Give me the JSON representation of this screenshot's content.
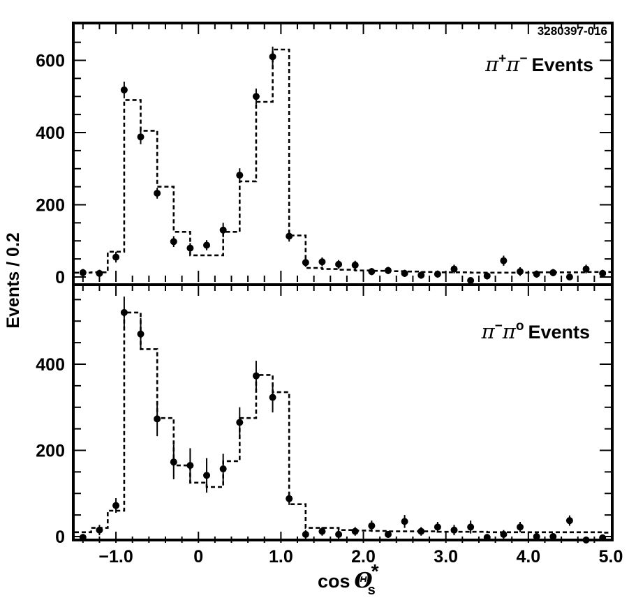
{
  "figure_id": "3280397-016",
  "ylabel": "Events / 0.2",
  "xlabel": {
    "prefix": "cos",
    "symbol": "Θ",
    "subscript": "s",
    "superscript": "*"
  },
  "chart_data": [
    {
      "type": "histogram",
      "panel": "top",
      "label": {
        "particle1": "π",
        "charge1": "+",
        "particle2": "π",
        "charge2": "−",
        "suffix": "Events"
      },
      "xlim": [
        -1.5,
        5.0
      ],
      "ylim": [
        0,
        700
      ],
      "yticks": [
        0,
        200,
        400,
        600
      ],
      "ytick_labels": [
        "0",
        "200",
        "400",
        "600"
      ],
      "xticks": [
        -1.0,
        0,
        1.0,
        2.0,
        3.0,
        4.0,
        5.0
      ],
      "xtick_labels": [
        "−1.0",
        "0",
        "1.0",
        "2.0",
        "3.0",
        "4.0",
        "5.0"
      ],
      "bin_width": 0.2,
      "bin_start": -1.5,
      "histogram": [
        12,
        13,
        70,
        490,
        405,
        250,
        125,
        60,
        60,
        125,
        265,
        485,
        630,
        115,
        25,
        22,
        20,
        18,
        17,
        16,
        15,
        14,
        13,
        13,
        12,
        12,
        12,
        12,
        13,
        13,
        13,
        14,
        14
      ],
      "points": [
        {
          "x": -1.4,
          "y": 12,
          "err": 10
        },
        {
          "x": -1.2,
          "y": 10,
          "err": 10
        },
        {
          "x": -1.0,
          "y": 55,
          "err": 15
        },
        {
          "x": -0.9,
          "y": 518,
          "err": 23
        },
        {
          "x": -0.7,
          "y": 388,
          "err": 20
        },
        {
          "x": -0.5,
          "y": 232,
          "err": 15
        },
        {
          "x": -0.3,
          "y": 98,
          "err": 15
        },
        {
          "x": -0.1,
          "y": 80,
          "err": 14
        },
        {
          "x": 0.1,
          "y": 88,
          "err": 14
        },
        {
          "x": 0.3,
          "y": 130,
          "err": 20
        },
        {
          "x": 0.5,
          "y": 282,
          "err": 19
        },
        {
          "x": 0.7,
          "y": 500,
          "err": 22
        },
        {
          "x": 0.9,
          "y": 610,
          "err": 28
        },
        {
          "x": 1.1,
          "y": 113,
          "err": 15
        },
        {
          "x": 1.3,
          "y": 40,
          "err": 12
        },
        {
          "x": 1.5,
          "y": 42,
          "err": 12
        },
        {
          "x": 1.7,
          "y": 35,
          "err": 12
        },
        {
          "x": 1.9,
          "y": 33,
          "err": 12
        },
        {
          "x": 2.1,
          "y": 15,
          "err": 10
        },
        {
          "x": 2.3,
          "y": 18,
          "err": 10
        },
        {
          "x": 2.5,
          "y": 10,
          "err": 10
        },
        {
          "x": 2.7,
          "y": 5,
          "err": 10
        },
        {
          "x": 2.9,
          "y": 8,
          "err": 10
        },
        {
          "x": 3.1,
          "y": 22,
          "err": 12
        },
        {
          "x": 3.3,
          "y": -20,
          "err": 8
        },
        {
          "x": 3.5,
          "y": 3,
          "err": 10
        },
        {
          "x": 3.7,
          "y": 45,
          "err": 14
        },
        {
          "x": 3.9,
          "y": 15,
          "err": 12
        },
        {
          "x": 4.1,
          "y": 8,
          "err": 10
        },
        {
          "x": 4.3,
          "y": 12,
          "err": 10
        },
        {
          "x": 4.5,
          "y": 0,
          "err": 8
        },
        {
          "x": 4.7,
          "y": 22,
          "err": 12
        },
        {
          "x": 4.9,
          "y": 10,
          "err": 10
        }
      ]
    },
    {
      "type": "histogram",
      "panel": "bottom",
      "label": {
        "particle1": "π",
        "charge1": "−",
        "particle2": "π",
        "charge2": "o",
        "suffix": "Events"
      },
      "xlim": [
        -1.5,
        5.0
      ],
      "ylim": [
        0,
        600
      ],
      "yticks": [
        0,
        200,
        400
      ],
      "ytick_labels": [
        "0",
        "200",
        "400"
      ],
      "xticks": [
        -1.0,
        0,
        1.0,
        2.0,
        3.0,
        4.0,
        5.0
      ],
      "xtick_labels": [
        "−1.0",
        "0",
        "1.0",
        "2.0",
        "3.0",
        "4.0",
        "5.0"
      ],
      "bin_width": 0.2,
      "bin_start": -1.5,
      "histogram": [
        10,
        20,
        60,
        520,
        435,
        275,
        165,
        125,
        115,
        175,
        275,
        375,
        335,
        75,
        20,
        20,
        15,
        14,
        13,
        12,
        12,
        12,
        11,
        11,
        11,
        10,
        10,
        10,
        10,
        10,
        10,
        10,
        9
      ],
      "points": [
        {
          "x": -1.4,
          "y": -2,
          "err": 8
        },
        {
          "x": -1.2,
          "y": 15,
          "err": 12
        },
        {
          "x": -1.0,
          "y": 72,
          "err": 17
        },
        {
          "x": -0.9,
          "y": 520,
          "err": 37
        },
        {
          "x": -0.7,
          "y": 470,
          "err": 37
        },
        {
          "x": -0.5,
          "y": 273,
          "err": 40
        },
        {
          "x": -0.3,
          "y": 173,
          "err": 40
        },
        {
          "x": -0.1,
          "y": 165,
          "err": 40
        },
        {
          "x": 0.1,
          "y": 142,
          "err": 40
        },
        {
          "x": 0.3,
          "y": 157,
          "err": 35
        },
        {
          "x": 0.5,
          "y": 265,
          "err": 35
        },
        {
          "x": 0.7,
          "y": 373,
          "err": 35
        },
        {
          "x": 0.9,
          "y": 323,
          "err": 35
        },
        {
          "x": 1.1,
          "y": 88,
          "err": 15
        },
        {
          "x": 1.3,
          "y": 5,
          "err": 10
        },
        {
          "x": 1.5,
          "y": 12,
          "err": 10
        },
        {
          "x": 1.7,
          "y": 5,
          "err": 10
        },
        {
          "x": 1.9,
          "y": 12,
          "err": 10
        },
        {
          "x": 2.1,
          "y": 25,
          "err": 12
        },
        {
          "x": 2.3,
          "y": 5,
          "err": 8
        },
        {
          "x": 2.5,
          "y": 35,
          "err": 15
        },
        {
          "x": 2.7,
          "y": 12,
          "err": 10
        },
        {
          "x": 2.9,
          "y": 22,
          "err": 12
        },
        {
          "x": 3.1,
          "y": 15,
          "err": 12
        },
        {
          "x": 3.3,
          "y": 22,
          "err": 15
        },
        {
          "x": 3.5,
          "y": -2,
          "err": 8
        },
        {
          "x": 3.7,
          "y": 5,
          "err": 10
        },
        {
          "x": 3.9,
          "y": 22,
          "err": 12
        },
        {
          "x": 4.1,
          "y": 0,
          "err": 8
        },
        {
          "x": 4.3,
          "y": 0,
          "err": 8
        },
        {
          "x": 4.5,
          "y": 37,
          "err": 12
        },
        {
          "x": 4.7,
          "y": -8,
          "err": 8
        },
        {
          "x": 4.9,
          "y": -3,
          "err": 8
        }
      ]
    }
  ]
}
